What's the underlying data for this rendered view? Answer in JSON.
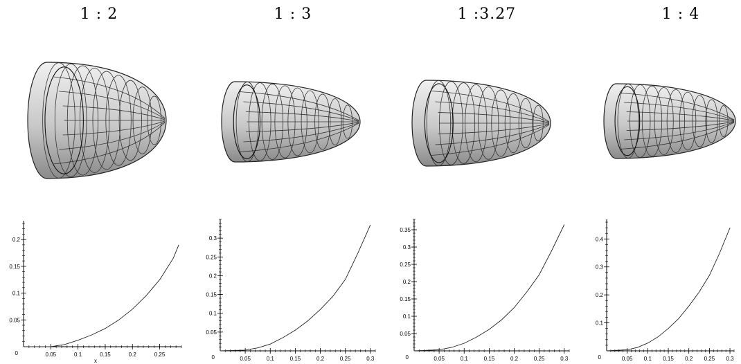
{
  "panels": [
    {
      "ratio_label": "1 : 2",
      "elongation": 1.0,
      "chart_data": {
        "type": "line",
        "title": "",
        "xlabel": "x",
        "ylabel": "",
        "xlim": [
          0,
          0.29
        ],
        "ylim": [
          0,
          0.235
        ],
        "xticks": [
          0.05,
          0.1,
          0.15,
          0.2,
          0.25
        ],
        "xtick_labels": [
          "0.05",
          "0.1",
          "0.15",
          "0.2",
          "0.25"
        ],
        "yticks": [
          0.05,
          0.1,
          0.15,
          0.2
        ],
        "ytick_labels": [
          "0.05",
          "0.1",
          "0.15",
          "0.2"
        ],
        "origin_label": "0",
        "series": [
          {
            "x": [
              0,
              0.05,
              0.075,
              0.1,
              0.125,
              0.15,
              0.175,
              0.2,
              0.225,
              0.25,
              0.275,
              0.285
            ],
            "y": [
              0,
              0,
              0.004,
              0.012,
              0.022,
              0.034,
              0.05,
              0.07,
              0.095,
              0.125,
              0.165,
              0.19
            ]
          }
        ]
      }
    },
    {
      "ratio_label": "1 : 3",
      "elongation": 1.5,
      "chart_data": {
        "type": "line",
        "title": "",
        "xlabel": "",
        "ylabel": "",
        "xlim": [
          0,
          0.31
        ],
        "ylim": [
          0,
          0.35
        ],
        "xticks": [
          0.05,
          0.1,
          0.15,
          0.2,
          0.25,
          0.3
        ],
        "xtick_labels": [
          "0.05",
          "0.1",
          "0.15",
          "0.2",
          "0.25",
          "0.3"
        ],
        "yticks": [
          0.05,
          0.1,
          0.15,
          0.2,
          0.25,
          0.3
        ],
        "ytick_labels": [
          "0.05",
          "0.1",
          "0.15",
          "0.2",
          "0.25",
          "0.3"
        ],
        "origin_label": "0",
        "series": [
          {
            "x": [
              0,
              0.05,
              0.075,
              0.1,
              0.125,
              0.15,
              0.175,
              0.2,
              0.225,
              0.25,
              0.275,
              0.3
            ],
            "y": [
              0,
              0.002,
              0.008,
              0.018,
              0.035,
              0.055,
              0.08,
              0.11,
              0.145,
              0.19,
              0.26,
              0.335
            ]
          }
        ]
      }
    },
    {
      "ratio_label": "1 :3.27",
      "elongation": 1.65,
      "chart_data": {
        "type": "line",
        "title": "",
        "xlabel": "",
        "ylabel": "",
        "xlim": [
          0,
          0.31
        ],
        "ylim": [
          0,
          0.38
        ],
        "xticks": [
          0.05,
          0.1,
          0.15,
          0.2,
          0.25,
          0.3
        ],
        "xtick_labels": [
          "0.05",
          "0.1",
          "0.15",
          "0.2",
          "0.25",
          "0.3"
        ],
        "yticks": [
          0.05,
          0.1,
          0.15,
          0.2,
          0.25,
          0.3,
          0.35
        ],
        "ytick_labels": [
          "0.05",
          "0.1",
          "0.15",
          "0.2",
          "0.25",
          "0.3",
          "0.35"
        ],
        "origin_label": "0",
        "series": [
          {
            "x": [
              0,
              0.05,
              0.075,
              0.1,
              0.125,
              0.15,
              0.175,
              0.2,
              0.225,
              0.25,
              0.275,
              0.3
            ],
            "y": [
              0,
              0.003,
              0.01,
              0.022,
              0.04,
              0.062,
              0.09,
              0.125,
              0.17,
              0.22,
              0.29,
              0.365
            ]
          }
        ]
      }
    },
    {
      "ratio_label": "1 : 4",
      "elongation": 2.0,
      "chart_data": {
        "type": "line",
        "title": "",
        "xlabel": "",
        "ylabel": "",
        "xlim": [
          0,
          0.31
        ],
        "ylim": [
          0,
          0.47
        ],
        "xticks": [
          0.05,
          0.1,
          0.15,
          0.2,
          0.25,
          0.3
        ],
        "xtick_labels": [
          "0.05",
          "0.1",
          "0.15",
          "0.2",
          "0.25",
          "0.3"
        ],
        "yticks": [
          0.1,
          0.2,
          0.3,
          0.4
        ],
        "ytick_labels": [
          "0.1",
          "0.2",
          "0.3",
          "0.4"
        ],
        "origin_label": "0",
        "series": [
          {
            "x": [
              0,
              0.05,
              0.075,
              0.1,
              0.125,
              0.15,
              0.175,
              0.2,
              0.225,
              0.25,
              0.275,
              0.3
            ],
            "y": [
              0,
              0.004,
              0.012,
              0.028,
              0.05,
              0.08,
              0.115,
              0.16,
              0.21,
              0.27,
              0.35,
              0.44
            ]
          }
        ]
      }
    }
  ]
}
